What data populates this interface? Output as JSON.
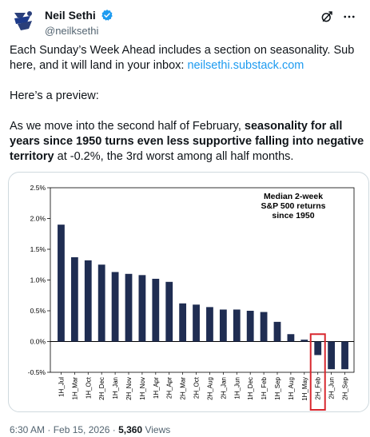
{
  "tweet": {
    "author_name": "Neil Sethi",
    "handle": "@neilksethi",
    "para1_a": "Each Sunday’s Week Ahead includes a section on seasonality.  Sub here, and it will land in your inbox: ",
    "link": "neilsethi.substack.com",
    "para2": "Here’s a preview:",
    "para3_a": "As we move into the second half of February, ",
    "para3_bold": "seasonality for all years since 1950 turns even less supportive falling into negative territory",
    "para3_b": " at -0.2%, the 3rd worst among all half months.",
    "timestamp": "6:30 AM · Feb 15, 2026 · ",
    "views_count": "5,360",
    "views_label": " Views"
  },
  "icons": {
    "avatar": "avatar-logo-icon",
    "verified": "verified-badge-icon",
    "grok": "grok-icon",
    "more": "more-options-icon"
  },
  "colors": {
    "bar": "#1f2d52",
    "highlight": "#d8272e",
    "link": "#1d9bf0",
    "verified": "#1d9bf0"
  },
  "chart_data": {
    "type": "bar",
    "title": "Median 2-week S&P 500 returns since 1950",
    "title_lines": [
      "Median 2-week",
      "S&P 500 returns",
      "since 1950"
    ],
    "categories": [
      "1H_Jul",
      "1H_Mar",
      "1H_Oct",
      "2H_Dec",
      "1H_Jan",
      "2H_Nov",
      "1H_Nov",
      "1H_Apr",
      "2H_Apr",
      "2H_Mar",
      "2H_Oct",
      "2H_Aug",
      "2H_Jan",
      "1H_Jun",
      "1H_Dec",
      "1H_Feb",
      "1H_Sep",
      "1H_Aug",
      "1H_May",
      "2H_Feb",
      "2H_Jun",
      "2H_Sep"
    ],
    "values": [
      1.9,
      1.37,
      1.32,
      1.25,
      1.13,
      1.1,
      1.08,
      1.02,
      0.97,
      0.62,
      0.6,
      0.56,
      0.52,
      0.52,
      0.5,
      0.48,
      0.32,
      0.12,
      0.03,
      -0.22,
      -0.45,
      -0.45
    ],
    "ylim": [
      -0.5,
      2.5
    ],
    "yticks": [
      -0.5,
      0.0,
      0.5,
      1.0,
      1.5,
      2.0,
      2.5
    ],
    "ytick_labels": [
      "-0.5%",
      "0.0%",
      "0.5%",
      "1.0%",
      "1.5%",
      "2.0%",
      "2.5%"
    ],
    "highlight_category": "2H_Feb",
    "grid": false,
    "legend": "none"
  }
}
